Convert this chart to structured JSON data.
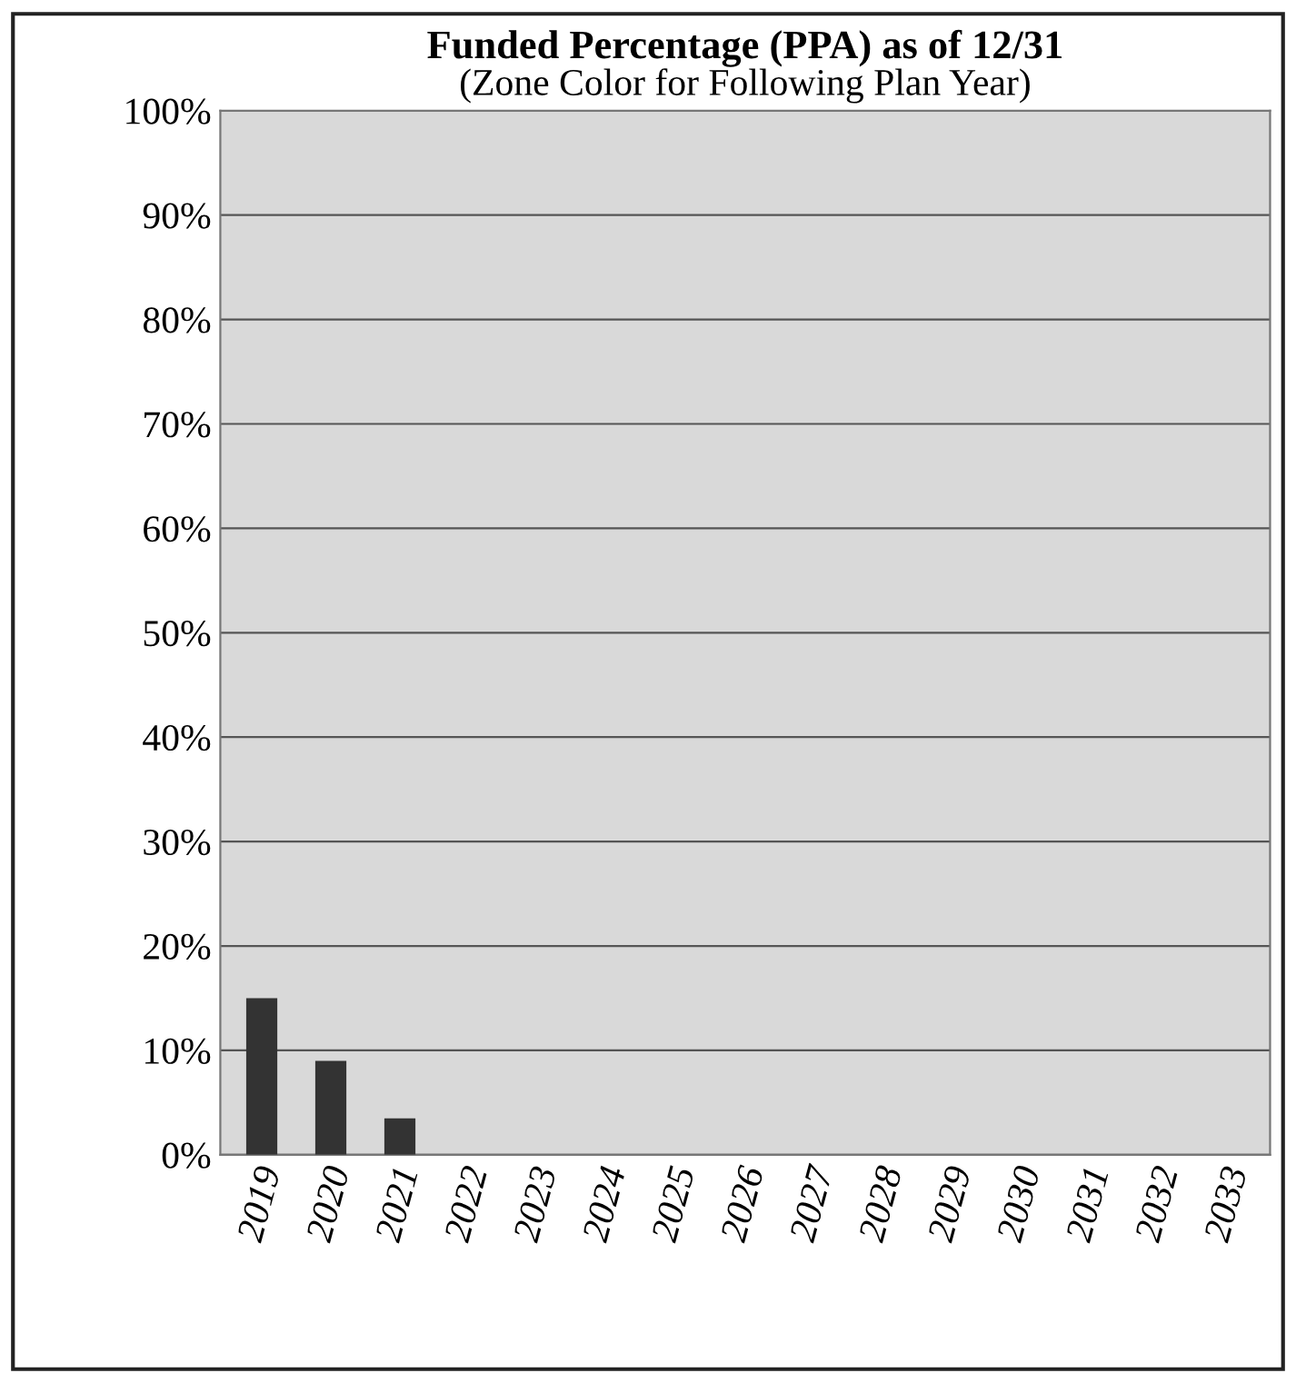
{
  "chart_data": {
    "type": "bar",
    "title": "Funded Percentage (PPA) as of 12/31",
    "subtitle": "(Zone Color for Following Plan Year)",
    "categories": [
      "2019",
      "2020",
      "2021",
      "2022",
      "2023",
      "2024",
      "2025",
      "2026",
      "2027",
      "2028",
      "2029",
      "2030",
      "2031",
      "2032",
      "2033"
    ],
    "values": [
      15,
      9,
      3.5,
      null,
      null,
      null,
      null,
      null,
      null,
      null,
      null,
      null,
      null,
      null,
      null
    ],
    "color": "#333333",
    "ylim": [
      0,
      100
    ],
    "yticks": [
      {
        "value": 0,
        "label": "0%"
      },
      {
        "value": 10,
        "label": "10%"
      },
      {
        "value": 20,
        "label": "20%"
      },
      {
        "value": 30,
        "label": "30%"
      },
      {
        "value": 40,
        "label": "40%"
      },
      {
        "value": 50,
        "label": "50%"
      },
      {
        "value": 60,
        "label": "60%"
      },
      {
        "value": 70,
        "label": "70%"
      },
      {
        "value": 80,
        "label": "80%"
      },
      {
        "value": 90,
        "label": "90%"
      },
      {
        "value": 100,
        "label": "100%"
      }
    ],
    "grid": "y"
  }
}
